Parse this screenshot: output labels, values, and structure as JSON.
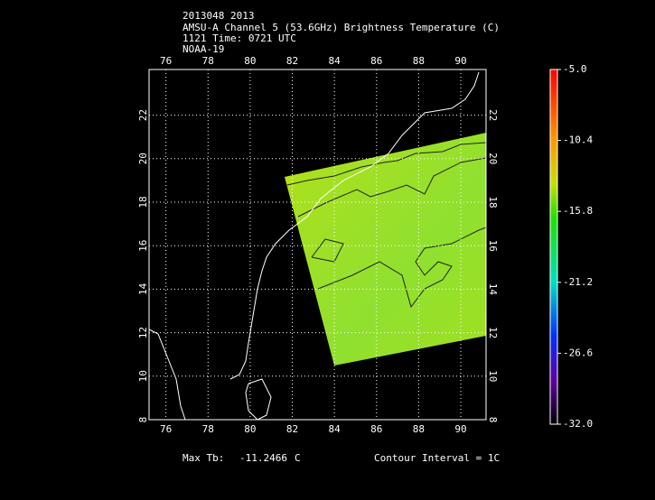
{
  "header": {
    "lines": [
      "2013048 2013",
      "AMSU-A Channel 5 (53.6GHz) Brightness Temperature (C)",
      "1121 Time: 0721 UTC",
      "NOAA-19"
    ]
  },
  "map": {
    "lonlim": [
      75.2,
      91.2
    ],
    "latlim": [
      8,
      24.1
    ],
    "lonticks": [
      76,
      78,
      80,
      82,
      84,
      86,
      88,
      90
    ],
    "latticks": [
      8,
      10,
      12,
      14,
      16,
      18,
      20,
      22
    ],
    "grid": true
  },
  "colorbar": {
    "lim": [
      -32,
      -5
    ],
    "ticks": [
      {
        "value": -5,
        "label": "-5.0"
      },
      {
        "value": -10.4,
        "label": "-10.4"
      },
      {
        "value": -15.8,
        "label": "-15.8"
      },
      {
        "value": -21.2,
        "label": "-21.2"
      },
      {
        "value": -26.6,
        "label": "-26.6"
      },
      {
        "value": -32,
        "label": "-32.0"
      }
    ]
  },
  "footer": {
    "max_label": "Max Tb:",
    "max_value": "-11.2466",
    "max_unit": "C",
    "contour": "Contour Interval = 1C"
  }
}
